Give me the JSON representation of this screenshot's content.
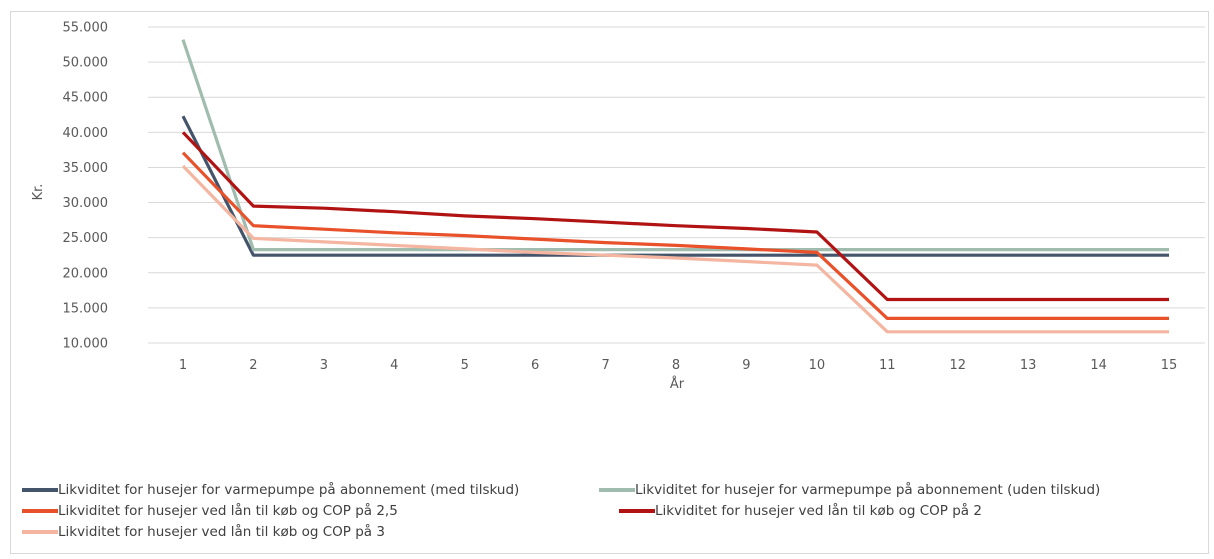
{
  "chart_data": {
    "type": "line",
    "title": "",
    "xlabel": "År",
    "ylabel": "Kr.",
    "x": [
      1,
      2,
      3,
      4,
      5,
      6,
      7,
      8,
      9,
      10,
      11,
      12,
      13,
      14,
      15
    ],
    "ylim": [
      10000,
      55000
    ],
    "yticks": [
      "10.000",
      "15.000",
      "20.000",
      "25.000",
      "30.000",
      "35.000",
      "40.000",
      "45.000",
      "50.000",
      "55.000"
    ],
    "grid": "horizontal",
    "legend_position": "bottom",
    "series": [
      {
        "name": "Likviditet for husejer for varmepumpe på abonnement (med tilskud)",
        "color": "#44546a",
        "values": [
          42300,
          22500,
          22500,
          22500,
          22500,
          22500,
          22500,
          22500,
          22500,
          22500,
          22500,
          22500,
          22500,
          22500,
          22500
        ]
      },
      {
        "name": "Likviditet for husejer for varmepumpe på abonnement (uden tilskud)",
        "color": "#9fbcae",
        "values": [
          53200,
          23300,
          23300,
          23300,
          23300,
          23300,
          23300,
          23300,
          23300,
          23300,
          23300,
          23300,
          23300,
          23300,
          23300
        ]
      },
      {
        "name": "Likviditet for husejer ved lån til køb og COP på 2,5",
        "color": "#e8512a",
        "values": [
          37100,
          26700,
          26200,
          25700,
          25300,
          24800,
          24300,
          23900,
          23400,
          22900,
          13500,
          13500,
          13500,
          13500,
          13500
        ]
      },
      {
        "name": "Likviditet for husejer ved lån til køb og COP på 2",
        "color": "#b11212",
        "values": [
          40000,
          29500,
          29200,
          28700,
          28100,
          27700,
          27200,
          26700,
          26300,
          25800,
          16200,
          16200,
          16200,
          16200,
          16200
        ]
      },
      {
        "name": "Likviditet for husejer ved lån til køb og COP på 3",
        "color": "#f4b6a1",
        "values": [
          35200,
          24900,
          24400,
          23900,
          23400,
          22900,
          22500,
          22100,
          21600,
          21100,
          11600,
          11600,
          11600,
          11600,
          11600
        ]
      }
    ]
  }
}
